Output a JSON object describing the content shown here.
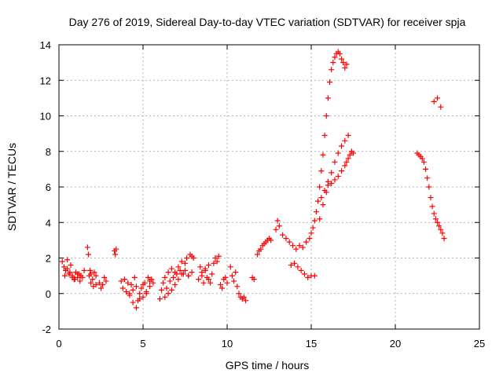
{
  "chart_data": {
    "type": "scatter",
    "title": "Day 276 of 2019, Sidereal Day-to-day VTEC variation (SDTVAR) for receiver spja",
    "xlabel": "GPS time / hours",
    "ylabel": "SDTVAR / TECUs",
    "xlim": [
      0,
      25
    ],
    "ylim": [
      -2,
      14
    ],
    "xticks": [
      0,
      5,
      10,
      15,
      20,
      25
    ],
    "yticks": [
      -2,
      0,
      2,
      4,
      6,
      8,
      10,
      12,
      14
    ],
    "grid": true,
    "marker": "+",
    "color": "#ff0000",
    "series": [
      {
        "name": "SDTVAR",
        "x": [
          0.2,
          0.3,
          0.4,
          0.5,
          0.6,
          0.7,
          0.8,
          0.9,
          1.0,
          1.1,
          1.2,
          1.3,
          1.4,
          1.5,
          0.35,
          0.5,
          0.65,
          0.8,
          0.95,
          1.1,
          1.25,
          1.7,
          1.75,
          1.8,
          1.85,
          1.9,
          2.0,
          2.1,
          2.2,
          1.9,
          2.05,
          2.2,
          2.4,
          2.5,
          2.6,
          2.7,
          2.8,
          3.3,
          3.35,
          3.4,
          3.7,
          3.8,
          3.9,
          4.0,
          4.1,
          4.2,
          4.3,
          4.4,
          4.5,
          4.6,
          4.7,
          4.8,
          4.9,
          5.0,
          5.1,
          5.2,
          5.3,
          5.4,
          5.5,
          5.6,
          4.2,
          4.4,
          4.6,
          4.8,
          5.0,
          5.2,
          5.4,
          6.0,
          6.1,
          6.2,
          6.3,
          6.4,
          6.5,
          6.6,
          6.7,
          6.8,
          6.9,
          7.0,
          7.1,
          7.2,
          7.3,
          7.4,
          7.5,
          7.6,
          7.7,
          7.8,
          7.9,
          8.0,
          6.3,
          6.5,
          6.7,
          6.9,
          7.1,
          7.3,
          7.5,
          7.7,
          7.9,
          8.3,
          8.4,
          8.5,
          8.6,
          8.7,
          8.8,
          8.9,
          9.0,
          8.5,
          8.7,
          8.9,
          9.1,
          9.2,
          9.3,
          9.4,
          9.5,
          9.6,
          9.7,
          9.8,
          9.9,
          10.0,
          10.2,
          10.3,
          10.4,
          10.5,
          10.6,
          10.7,
          10.8,
          10.9,
          11.0,
          11.1,
          11.5,
          11.6,
          11.8,
          11.9,
          12.0,
          12.1,
          12.2,
          12.3,
          12.4,
          12.5,
          12.6,
          12.9,
          13.0,
          13.1,
          13.3,
          13.5,
          13.7,
          13.9,
          14.1,
          14.3,
          14.5,
          14.7,
          14.9,
          15.0,
          15.1,
          15.2,
          13.8,
          14.0,
          14.2,
          14.4,
          14.6,
          14.8,
          15.0,
          15.2,
          15.3,
          15.4,
          15.5,
          15.6,
          15.7,
          15.8,
          15.9,
          16.0,
          16.1,
          16.2,
          16.3,
          16.4,
          16.5,
          16.6,
          16.7,
          16.8,
          16.9,
          17.0,
          17.1,
          15.6,
          15.8,
          16.0,
          16.2,
          16.4,
          16.6,
          16.8,
          17.0,
          17.1,
          17.2,
          17.3,
          17.4,
          17.5,
          15.5,
          15.7,
          15.9,
          16.0,
          16.2,
          16.4,
          16.6,
          16.8,
          17.0,
          17.2,
          21.3,
          21.4,
          21.5,
          21.6,
          21.7,
          21.8,
          21.9,
          22.0,
          22.1,
          22.2,
          22.3,
          22.4,
          22.5,
          22.6,
          22.7,
          22.8,
          22.9,
          22.3,
          22.5,
          22.7
        ],
        "y": [
          1.8,
          1.5,
          1.3,
          1.9,
          1.1,
          1.6,
          1.0,
          0.8,
          1.2,
          0.9,
          1.1,
          1.0,
          0.9,
          1.3,
          1.0,
          1.4,
          1.2,
          0.9,
          0.8,
          1.1,
          0.7,
          2.6,
          2.2,
          1.0,
          1.3,
          1.1,
          0.8,
          1.2,
          1.0,
          0.6,
          0.4,
          0.5,
          0.6,
          0.3,
          0.5,
          0.9,
          0.7,
          2.4,
          2.2,
          2.5,
          0.7,
          0.3,
          0.8,
          0.1,
          0.6,
          -0.1,
          0.5,
          0.2,
          0.9,
          0.4,
          -0.4,
          0.0,
          0.3,
          -0.2,
          0.6,
          0.1,
          0.9,
          0.4,
          0.8,
          0.6,
          0.0,
          -0.5,
          -0.8,
          -0.3,
          0.5,
          0.0,
          0.7,
          -0.3,
          0.2,
          0.6,
          0.9,
          0.3,
          1.2,
          0.7,
          1.4,
          0.9,
          1.2,
          1.1,
          1.5,
          1.3,
          1.8,
          1.1,
          1.7,
          2.0,
          1.0,
          2.2,
          2.1,
          2.0,
          -0.2,
          0.0,
          0.2,
          0.5,
          0.8,
          1.1,
          1.3,
          1.0,
          1.2,
          0.8,
          1.5,
          1.0,
          0.6,
          1.3,
          0.9,
          1.6,
          0.6,
          1.2,
          1.4,
          0.8,
          1.1,
          1.7,
          2.0,
          1.8,
          2.1,
          0.5,
          0.3,
          0.8,
          0.9,
          0.6,
          1.5,
          1.0,
          0.7,
          1.2,
          0.4,
          0.0,
          -0.2,
          -0.3,
          -0.2,
          -0.4,
          0.9,
          0.8,
          2.2,
          2.4,
          2.5,
          2.7,
          2.8,
          2.9,
          3.0,
          3.1,
          3.0,
          3.6,
          4.1,
          3.8,
          3.3,
          3.1,
          2.9,
          2.7,
          2.5,
          2.7,
          2.6,
          2.9,
          3.1,
          3.4,
          3.7,
          4.1,
          1.6,
          1.7,
          1.5,
          1.3,
          1.1,
          0.9,
          1.0,
          1.0,
          4.6,
          5.2,
          6.0,
          6.9,
          7.8,
          8.9,
          10.0,
          11.0,
          11.9,
          12.6,
          13.0,
          13.3,
          13.5,
          13.6,
          13.5,
          13.2,
          13.0,
          12.7,
          12.9,
          5.4,
          5.8,
          6.1,
          6.2,
          6.4,
          6.6,
          6.9,
          7.2,
          7.4,
          7.6,
          7.8,
          8.0,
          7.9,
          4.2,
          5.0,
          5.7,
          6.3,
          6.8,
          7.4,
          7.9,
          8.3,
          8.6,
          8.9,
          7.9,
          7.8,
          7.7,
          7.6,
          7.4,
          7.0,
          6.5,
          6.0,
          5.4,
          4.9,
          4.5,
          4.2,
          4.0,
          3.8,
          3.6,
          3.4,
          3.1,
          10.8,
          11.0,
          10.5
        ]
      }
    ]
  }
}
